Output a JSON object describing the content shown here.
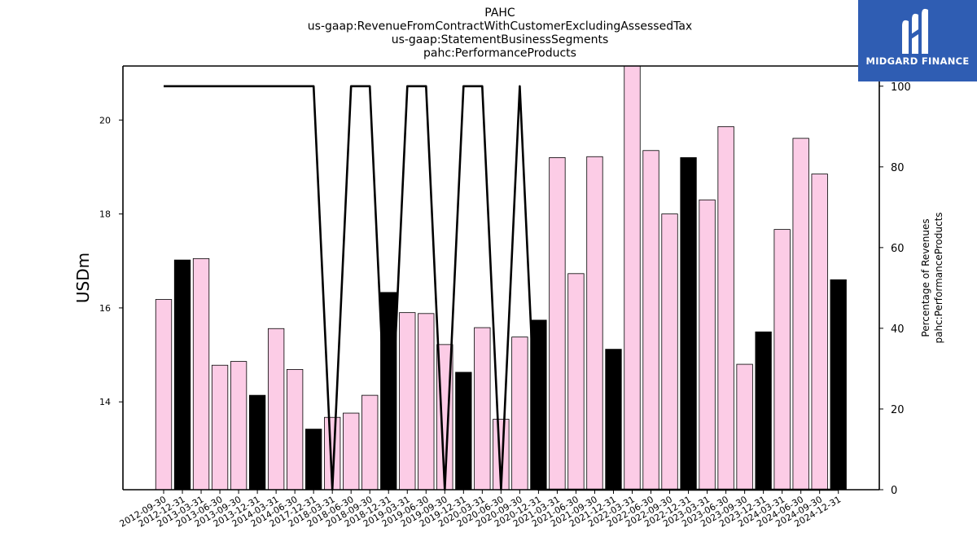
{
  "chart_data": {
    "type": "bar",
    "title_lines": [
      "PAHC",
      "us-gaap:RevenueFromContractWithCustomerExcludingAssessedTax",
      "us-gaap:StatementBusinessSegments",
      "pahc:PerformanceProducts"
    ],
    "ylabel": "USDm",
    "y2label_lines": [
      "Percentage of Revenues",
      "pahc:PerformanceProducts"
    ],
    "ylim": [
      12.13,
      21.15
    ],
    "y2lim": [
      0,
      105
    ],
    "yticks": [
      14,
      16,
      18,
      20
    ],
    "y2ticks": [
      0,
      20,
      40,
      60,
      80,
      100
    ],
    "categories": [
      "2012-09-30",
      "2012-12-31",
      "2013-03-31",
      "2013-06-30",
      "2013-09-30",
      "2013-12-31",
      "2014-03-31",
      "2014-06-30",
      "2017-12-31",
      "2018-03-31",
      "2018-06-30",
      "2018-09-30",
      "2018-12-31",
      "2019-03-31",
      "2019-06-30",
      "2019-09-30",
      "2019-12-31",
      "2020-03-31",
      "2020-06-30",
      "2020-09-30",
      "2020-12-31",
      "2021-03-31",
      "2021-06-30",
      "2021-09-30",
      "2021-12-31",
      "2022-03-31",
      "2022-06-30",
      "2022-09-30",
      "2022-12-31",
      "2023-03-31",
      "2023-06-30",
      "2023-09-30",
      "2023-12-31",
      "2024-03-31",
      "2024-06-30",
      "2024-09-30",
      "2024-12-31"
    ],
    "values": [
      16.18,
      17.02,
      17.05,
      14.78,
      14.86,
      14.14,
      15.56,
      14.69,
      13.42,
      13.67,
      13.76,
      14.14,
      16.33,
      15.9,
      15.88,
      15.22,
      14.63,
      15.58,
      13.63,
      15.38,
      15.74,
      19.2,
      16.73,
      19.22,
      15.12,
      21.2,
      19.35,
      18.0,
      19.2,
      18.3,
      19.86,
      14.8,
      15.49,
      17.67,
      19.61,
      18.85,
      16.6
    ],
    "bar_colors": [
      "#fccce6",
      "#000000",
      "#fccce6",
      "#fccce6",
      "#fccce6",
      "#000000",
      "#fccce6",
      "#fccce6",
      "#000000",
      "#fccce6",
      "#fccce6",
      "#fccce6",
      "#000000",
      "#fccce6",
      "#fccce6",
      "#fccce6",
      "#000000",
      "#fccce6",
      "#fccce6",
      "#fccce6",
      "#000000",
      "#fccce6",
      "#fccce6",
      "#fccce6",
      "#000000",
      "#fccce6",
      "#fccce6",
      "#fccce6",
      "#000000",
      "#fccce6",
      "#fccce6",
      "#fccce6",
      "#000000",
      "#fccce6",
      "#fccce6",
      "#fccce6",
      "#000000"
    ],
    "percentage_line": [
      100,
      100,
      100,
      100,
      100,
      100,
      100,
      100,
      100,
      0,
      100,
      100,
      0,
      100,
      100,
      0,
      100,
      100,
      0,
      100,
      0,
      0,
      0,
      0,
      0,
      0,
      0,
      0,
      0,
      0,
      0,
      0,
      0,
      0,
      0,
      0,
      0
    ],
    "grid": false,
    "legend": "none"
  },
  "logo": {
    "text": "MIDGARD FINANCE",
    "background": "#2f5db3"
  }
}
